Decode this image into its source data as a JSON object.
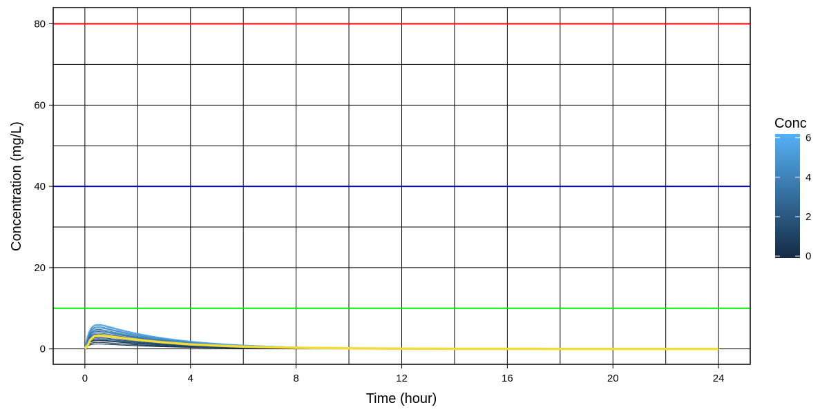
{
  "chart_data": {
    "type": "line",
    "xlabel": "Time (hour)",
    "ylabel": "Concentration (mg/L)",
    "x_ticks": [
      0,
      4,
      8,
      12,
      16,
      20,
      24
    ],
    "y_ticks": [
      0,
      20,
      40,
      60,
      80
    ],
    "xlim": [
      -1.2,
      25.2
    ],
    "ylim": [
      -3.8,
      84
    ],
    "grid": true,
    "reference_lines": [
      {
        "y": 80,
        "color": "#ff0000"
      },
      {
        "y": 40,
        "color": "#0000cc"
      },
      {
        "y": 10,
        "color": "#00ee00"
      }
    ],
    "individual_curves": {
      "color_by": "Conc",
      "description_scale": "Conc",
      "curves": [
        {
          "conc": 0.3,
          "tmax": 0.4,
          "cmax": 1.2,
          "t_end": 9
        },
        {
          "conc": 0.6,
          "tmax": 0.5,
          "cmax": 1.6,
          "t_end": 9
        },
        {
          "conc": 0.9,
          "tmax": 0.4,
          "cmax": 2.0,
          "t_end": 10
        },
        {
          "conc": 1.2,
          "tmax": 0.55,
          "cmax": 2.2,
          "t_end": 11
        },
        {
          "conc": 1.5,
          "tmax": 0.45,
          "cmax": 2.5,
          "t_end": 11
        },
        {
          "conc": 1.8,
          "tmax": 0.5,
          "cmax": 2.8,
          "t_end": 12
        },
        {
          "conc": 2.1,
          "tmax": 0.4,
          "cmax": 3.1,
          "t_end": 12
        },
        {
          "conc": 2.4,
          "tmax": 0.55,
          "cmax": 3.3,
          "t_end": 12
        },
        {
          "conc": 2.7,
          "tmax": 0.45,
          "cmax": 3.6,
          "t_end": 12.5
        },
        {
          "conc": 3.0,
          "tmax": 0.5,
          "cmax": 3.9,
          "t_end": 12.5
        },
        {
          "conc": 3.3,
          "tmax": 0.4,
          "cmax": 4.2,
          "t_end": 12.8
        },
        {
          "conc": 3.6,
          "tmax": 0.45,
          "cmax": 4.5,
          "t_end": 12.8
        },
        {
          "conc": 4.0,
          "tmax": 0.5,
          "cmax": 4.8,
          "t_end": 13
        },
        {
          "conc": 4.4,
          "tmax": 0.4,
          "cmax": 5.1,
          "t_end": 13
        },
        {
          "conc": 4.8,
          "tmax": 0.45,
          "cmax": 5.4,
          "t_end": 13
        },
        {
          "conc": 5.2,
          "tmax": 0.4,
          "cmax": 5.7,
          "t_end": 13
        },
        {
          "conc": 5.6,
          "tmax": 0.45,
          "cmax": 6.0,
          "t_end": 13
        }
      ]
    },
    "mean_curve": {
      "color": "#f2dc3a",
      "points": [
        [
          0,
          0
        ],
        [
          0.1,
          0.8
        ],
        [
          0.2,
          2.2
        ],
        [
          0.35,
          3.1
        ],
        [
          0.5,
          3.3
        ],
        [
          0.75,
          3.2
        ],
        [
          1,
          3.0
        ],
        [
          1.5,
          2.6
        ],
        [
          2,
          2.2
        ],
        [
          3,
          1.6
        ],
        [
          4,
          1.1
        ],
        [
          5,
          0.8
        ],
        [
          6,
          0.55
        ],
        [
          7,
          0.4
        ],
        [
          8,
          0.28
        ],
        [
          10,
          0.14
        ],
        [
          12,
          0.07
        ],
        [
          14,
          0.03
        ],
        [
          16,
          0.02
        ],
        [
          18,
          0.01
        ],
        [
          20,
          0.0
        ],
        [
          22,
          0.0
        ],
        [
          24,
          0.0
        ]
      ]
    },
    "legend": {
      "title": "Conc",
      "ticks": [
        0,
        2,
        4,
        6
      ],
      "min": -0.1,
      "max": 6.2,
      "color_low": "#132b43",
      "color_high": "#56b1f7",
      "placement": "right"
    }
  }
}
